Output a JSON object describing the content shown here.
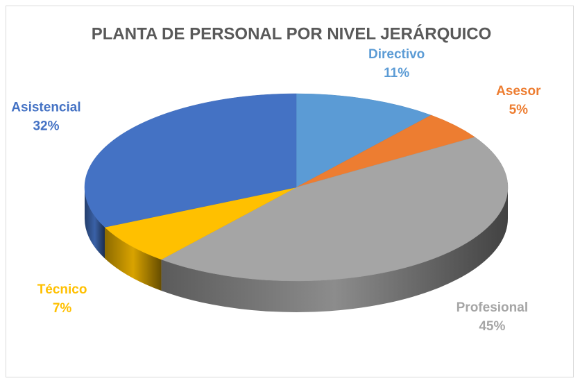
{
  "chart_data": {
    "type": "pie",
    "title": "PLANTA DE PERSONAL POR NIVEL JERÁRQUICO",
    "categories": [
      "Directivo",
      "Asesor",
      "Profesional",
      "Técnico",
      "Asistencial"
    ],
    "values": [
      11,
      5,
      45,
      7,
      32
    ],
    "value_labels": [
      "11%",
      "5%",
      "45%",
      "7%",
      "32%"
    ],
    "colors": [
      "#5b9bd5",
      "#ed7d31",
      "#a5a5a5",
      "#ffc000",
      "#4472c4"
    ]
  }
}
